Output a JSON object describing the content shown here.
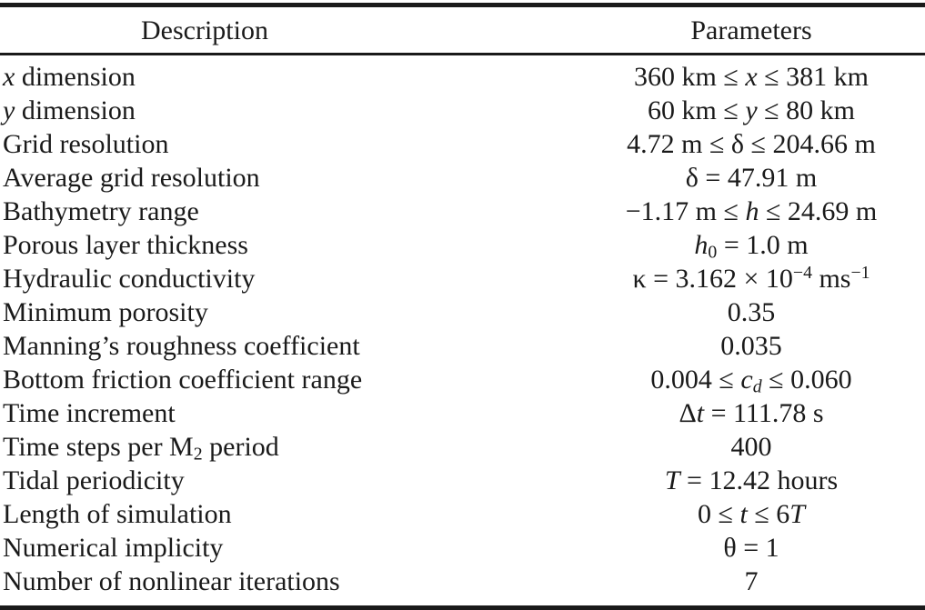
{
  "table": {
    "columns": [
      "Description",
      "Parameters"
    ],
    "rows": [
      {
        "description": [
          [
            "x",
            "i"
          ],
          [
            " dimension",
            ""
          ]
        ],
        "parameter": [
          [
            "360 km ≤ ",
            ""
          ],
          [
            "x",
            "i"
          ],
          [
            " ≤ 381 km",
            ""
          ]
        ]
      },
      {
        "description": [
          [
            "y",
            "i"
          ],
          [
            " dimension",
            ""
          ]
        ],
        "parameter": [
          [
            "60 km ≤ ",
            ""
          ],
          [
            "y",
            "i"
          ],
          [
            " ≤ 80 km",
            ""
          ]
        ]
      },
      {
        "description": [
          [
            "Grid resolution",
            ""
          ]
        ],
        "parameter": [
          [
            "4.72 m ≤ δ ≤ 204.66 m",
            ""
          ]
        ]
      },
      {
        "description": [
          [
            "Average grid resolution",
            ""
          ]
        ],
        "parameter": [
          [
            "δ = 47.91 m",
            ""
          ]
        ]
      },
      {
        "description": [
          [
            "Bathymetry range",
            ""
          ]
        ],
        "parameter": [
          [
            "−1.17 m ≤ ",
            ""
          ],
          [
            "h",
            "i"
          ],
          [
            " ≤ 24.69 m",
            ""
          ]
        ]
      },
      {
        "description": [
          [
            "Porous layer thickness",
            ""
          ]
        ],
        "parameter": [
          [
            "h",
            "i"
          ],
          [
            "0",
            "sub"
          ],
          [
            " = 1.0 m",
            ""
          ]
        ]
      },
      {
        "description": [
          [
            "Hydraulic conductivity",
            ""
          ]
        ],
        "parameter": [
          [
            "κ = 3.162 × 10",
            ""
          ],
          [
            "−4",
            "sup"
          ],
          [
            " ms",
            ""
          ],
          [
            "−1",
            "sup"
          ]
        ]
      },
      {
        "description": [
          [
            "Minimum porosity",
            ""
          ]
        ],
        "parameter": [
          [
            "0.35",
            ""
          ]
        ]
      },
      {
        "description": [
          [
            "Manning’s roughness coefficient",
            ""
          ]
        ],
        "parameter": [
          [
            "0.035",
            ""
          ]
        ]
      },
      {
        "description": [
          [
            "Bottom friction coefficient range",
            ""
          ]
        ],
        "parameter": [
          [
            "0.004 ≤ ",
            ""
          ],
          [
            "c",
            "i"
          ],
          [
            "d",
            "isub"
          ],
          [
            " ≤ 0.060",
            ""
          ]
        ]
      },
      {
        "description": [
          [
            "Time increment",
            ""
          ]
        ],
        "parameter": [
          [
            "Δ",
            ""
          ],
          [
            "t",
            "i"
          ],
          [
            " = 111.78 s",
            ""
          ]
        ]
      },
      {
        "description": [
          [
            "Time steps per M",
            ""
          ],
          [
            "2",
            "sub"
          ],
          [
            " period",
            ""
          ]
        ],
        "parameter": [
          [
            "400",
            ""
          ]
        ]
      },
      {
        "description": [
          [
            "Tidal periodicity",
            ""
          ]
        ],
        "parameter": [
          [
            "T",
            "i"
          ],
          [
            " = 12.42 hours",
            ""
          ]
        ]
      },
      {
        "description": [
          [
            "Length of simulation",
            ""
          ]
        ],
        "parameter": [
          [
            "0 ≤ ",
            ""
          ],
          [
            "t",
            "i"
          ],
          [
            " ≤ 6",
            ""
          ],
          [
            "T",
            "i"
          ]
        ]
      },
      {
        "description": [
          [
            "Numerical implicity",
            ""
          ]
        ],
        "parameter": [
          [
            "θ = 1",
            ""
          ]
        ]
      },
      {
        "description": [
          [
            "Number of nonlinear iterations",
            ""
          ]
        ],
        "parameter": [
          [
            "7",
            ""
          ]
        ]
      }
    ]
  }
}
